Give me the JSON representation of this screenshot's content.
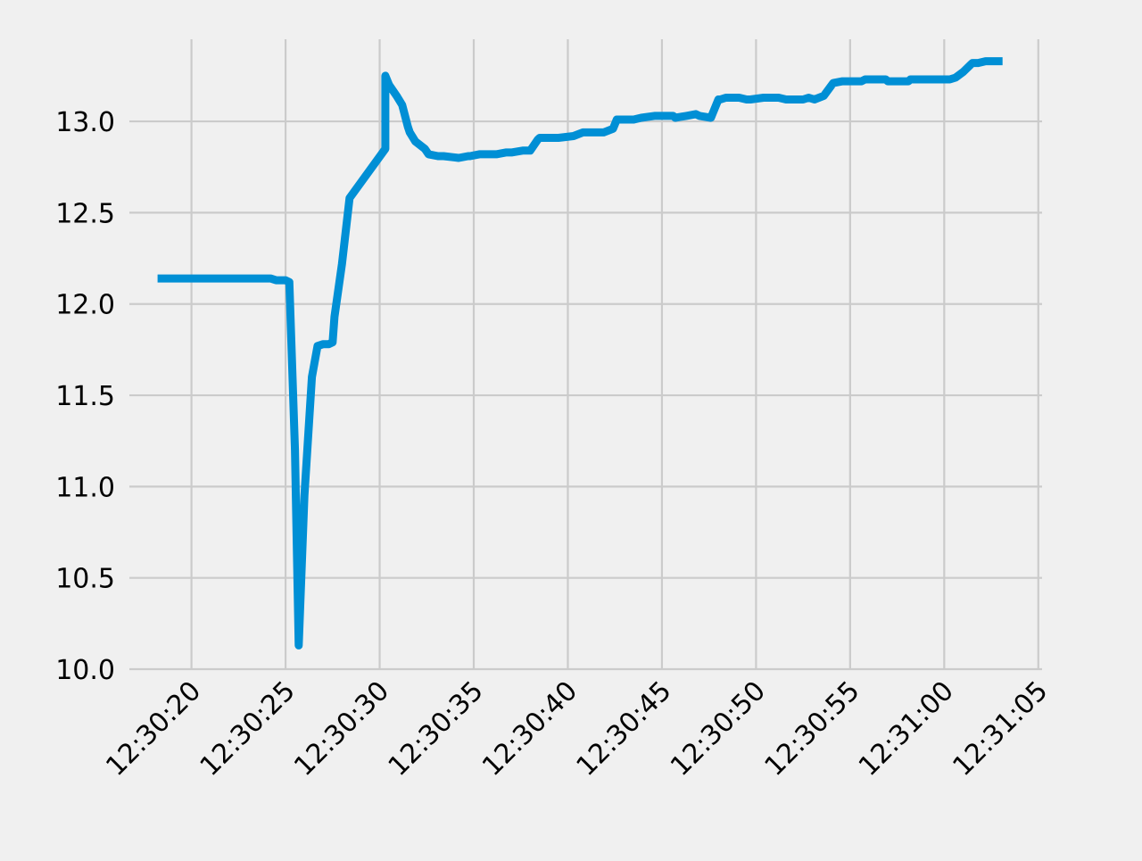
{
  "chart_data": {
    "type": "line",
    "title": "",
    "xlabel": "",
    "ylabel": "",
    "style": {
      "background": "#f0f0f0",
      "grid_color": "#cbcbcb",
      "line_color": "#008fd5",
      "grid": true
    },
    "x_axis": {
      "kind": "time",
      "tick_labels": [
        "12:30:20",
        "12:30:25",
        "12:30:30",
        "12:30:35",
        "12:30:40",
        "12:30:45",
        "12:30:50",
        "12:30:55",
        "12:31:00",
        "12:31:05"
      ],
      "xlim": [
        "12:30:16.7",
        "12:31:05.2"
      ]
    },
    "y_axis": {
      "tick_labels": [
        "10.0",
        "10.5",
        "11.0",
        "11.5",
        "12.0",
        "12.5",
        "13.0"
      ],
      "ylim": [
        10.0,
        13.45
      ]
    },
    "series": [
      {
        "x": [
          "12:30:18.2",
          "12:30:24.2",
          "12:30:24.5",
          "12:30:25.0",
          "12:30:25.2",
          "12:30:25.5",
          "12:30:25.7",
          "12:30:26.0",
          "12:30:26.4",
          "12:30:26.7",
          "12:30:27.0",
          "12:30:27.3",
          "12:30:27.5",
          "12:30:27.6",
          "12:30:28.0",
          "12:30:28.4",
          "12:30:30.3",
          "12:30:30.3",
          "12:30:30.5",
          "12:30:30.9",
          "12:30:31.2",
          "12:30:31.5",
          "12:30:31.6",
          "12:30:31.9",
          "12:30:32.4",
          "12:30:32.6",
          "12:30:33.1",
          "12:30:33.4",
          "12:30:34.2",
          "12:30:34.7",
          "12:30:34.8",
          "12:30:35.3",
          "12:30:36.2",
          "12:30:36.7",
          "12:30:37.0",
          "12:30:37.6",
          "12:30:38.0",
          "12:30:38.4",
          "12:30:38.5",
          "12:30:39.0",
          "12:30:39.5",
          "12:30:40.3",
          "12:30:40.8",
          "12:30:41.9",
          "12:30:42.4",
          "12:30:42.6",
          "12:30:43.5",
          "12:30:43.9",
          "12:30:44.6",
          "12:30:45.6",
          "12:30:45.7",
          "12:30:46.3",
          "12:30:46.8",
          "12:30:47.0",
          "12:30:47.6",
          "12:30:48.0",
          "12:30:48.1",
          "12:30:48.4",
          "12:30:49.1",
          "12:30:49.5",
          "12:30:49.7",
          "12:30:50.4",
          "12:30:51.2",
          "12:30:51.6",
          "12:30:52.5",
          "12:30:52.8",
          "12:30:53.1",
          "12:30:53.6",
          "12:30:54.1",
          "12:30:54.6",
          "12:30:55.6",
          "12:30:55.8",
          "12:30:56.9",
          "12:30:57.0",
          "12:30:58.1",
          "12:30:58.2",
          "12:31:00.3",
          "12:31:00.6",
          "12:31:01.0",
          "12:31:01.4",
          "12:31:01.5",
          "12:31:01.8",
          "12:31:02.2",
          "12:31:03.1"
        ],
        "values": [
          12.14,
          12.14,
          12.13,
          12.13,
          12.12,
          11.2,
          10.13,
          10.95,
          11.6,
          11.77,
          11.78,
          11.78,
          11.79,
          11.93,
          12.22,
          12.58,
          12.85,
          13.25,
          13.2,
          13.14,
          13.09,
          12.97,
          12.94,
          12.89,
          12.85,
          12.82,
          12.81,
          12.81,
          12.8,
          12.81,
          12.81,
          12.82,
          12.82,
          12.83,
          12.83,
          12.84,
          12.84,
          12.9,
          12.91,
          12.91,
          12.91,
          12.92,
          12.94,
          12.94,
          12.96,
          13.01,
          13.01,
          13.02,
          13.03,
          13.03,
          13.02,
          13.03,
          13.04,
          13.03,
          13.02,
          13.12,
          13.12,
          13.13,
          13.13,
          13.12,
          13.12,
          13.13,
          13.13,
          13.12,
          13.12,
          13.13,
          13.12,
          13.14,
          13.21,
          13.22,
          13.22,
          13.23,
          13.23,
          13.22,
          13.22,
          13.23,
          13.23,
          13.24,
          13.27,
          13.31,
          13.32,
          13.32,
          13.33,
          13.33
        ]
      }
    ]
  }
}
